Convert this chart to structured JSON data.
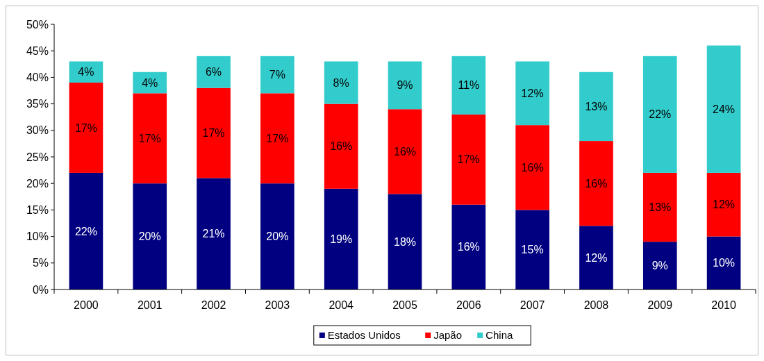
{
  "chart_data": {
    "type": "bar",
    "stacked": true,
    "categories": [
      "2000",
      "2001",
      "2002",
      "2003",
      "2004",
      "2005",
      "2006",
      "2007",
      "2008",
      "2009",
      "2010"
    ],
    "series": [
      {
        "name": "Estados Unidos",
        "color": "#000080",
        "values": [
          22,
          20,
          21,
          20,
          19,
          18,
          16,
          15,
          12,
          9,
          10
        ],
        "value_labels": [
          "22%",
          "20%",
          "21%",
          "20%",
          "19%",
          "18%",
          "16%",
          "15%",
          "12%",
          "9%",
          "10%"
        ]
      },
      {
        "name": "Japão",
        "color": "#ff0000",
        "values": [
          17,
          17,
          17,
          17,
          16,
          16,
          17,
          16,
          16,
          13,
          12
        ],
        "value_labels": [
          "17%",
          "17%",
          "17%",
          "17%",
          "16%",
          "16%",
          "17%",
          "16%",
          "16%",
          "13%",
          "12%"
        ]
      },
      {
        "name": "China",
        "color": "#33cccc",
        "values": [
          4,
          4,
          6,
          7,
          8,
          9,
          11,
          12,
          13,
          22,
          24
        ],
        "value_labels": [
          "4%",
          "4%",
          "6%",
          "7%",
          "8%",
          "9%",
          "11%",
          "12%",
          "13%",
          "22%",
          "24%"
        ]
      }
    ],
    "ylim": [
      0,
      50
    ],
    "yticks": [
      {
        "value": 0,
        "label": "0%"
      },
      {
        "value": 5,
        "label": "5%"
      },
      {
        "value": 10,
        "label": "10%"
      },
      {
        "value": 15,
        "label": "15%"
      },
      {
        "value": 20,
        "label": "20%"
      },
      {
        "value": 25,
        "label": "25%"
      },
      {
        "value": 30,
        "label": "30%"
      },
      {
        "value": 35,
        "label": "35%"
      },
      {
        "value": 40,
        "label": "40%"
      },
      {
        "value": 45,
        "label": "45%"
      },
      {
        "value": 50,
        "label": "50%"
      }
    ],
    "grid": false,
    "legend": "bottom"
  }
}
